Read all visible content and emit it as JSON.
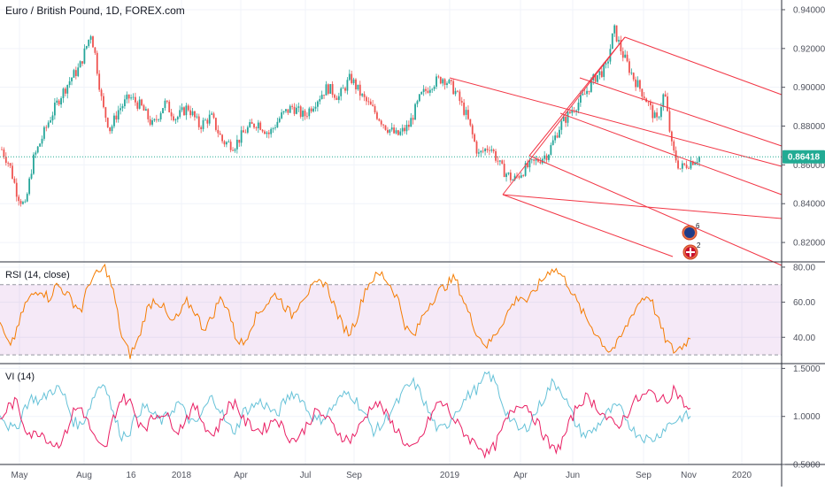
{
  "header": {
    "title": "Euro / British Pound, 1D, FOREX.com"
  },
  "colors": {
    "up": "#26a69a",
    "down": "#ef5350",
    "pitchfork": "#f23645",
    "last_price": "#22ab94",
    "rsi_line": "#f57c00",
    "rsi_band": "#9c27b0",
    "vi_plus": "#66c2d8",
    "vi_minus": "#e91e63",
    "grid": "#f0f3fa"
  },
  "chart_data": [
    {
      "type": "candlestick",
      "pane": "price",
      "title": "Euro / British Pound, 1D, FOREX.com",
      "ylim": [
        0.81,
        0.945
      ],
      "yticks": [
        "0.94000",
        "0.92000",
        "0.90000",
        "0.88000",
        "0.86000",
        "0.84000",
        "0.82000"
      ],
      "last_price": "0.86418",
      "x_axis_labels": [
        "May",
        "Aug",
        "16",
        "2018",
        "Apr",
        "Jul",
        "Sep",
        "2019",
        "Apr",
        "Jun",
        "Sep",
        "Nov",
        "2020"
      ],
      "close_path": [
        [
          0.0,
          0.868
        ],
        [
          0.01,
          0.86
        ],
        [
          0.02,
          0.845
        ],
        [
          0.03,
          0.838
        ],
        [
          0.04,
          0.862
        ],
        [
          0.05,
          0.872
        ],
        [
          0.06,
          0.882
        ],
        [
          0.075,
          0.895
        ],
        [
          0.09,
          0.905
        ],
        [
          0.1,
          0.91
        ],
        [
          0.11,
          0.922
        ],
        [
          0.115,
          0.928
        ],
        [
          0.12,
          0.918
        ],
        [
          0.13,
          0.89
        ],
        [
          0.14,
          0.878
        ],
        [
          0.15,
          0.888
        ],
        [
          0.165,
          0.895
        ],
        [
          0.18,
          0.89
        ],
        [
          0.195,
          0.88
        ],
        [
          0.21,
          0.892
        ],
        [
          0.225,
          0.884
        ],
        [
          0.24,
          0.89
        ],
        [
          0.255,
          0.88
        ],
        [
          0.27,
          0.885
        ],
        [
          0.285,
          0.872
        ],
        [
          0.3,
          0.87
        ],
        [
          0.315,
          0.878
        ],
        [
          0.33,
          0.882
        ],
        [
          0.345,
          0.876
        ],
        [
          0.36,
          0.885
        ],
        [
          0.375,
          0.89
        ],
        [
          0.39,
          0.885
        ],
        [
          0.405,
          0.893
        ],
        [
          0.42,
          0.9
        ],
        [
          0.435,
          0.895
        ],
        [
          0.45,
          0.905
        ],
        [
          0.465,
          0.895
        ],
        [
          0.48,
          0.888
        ],
        [
          0.495,
          0.88
        ],
        [
          0.51,
          0.875
        ],
        [
          0.525,
          0.88
        ],
        [
          0.54,
          0.895
        ],
        [
          0.555,
          0.902
        ],
        [
          0.57,
          0.905
        ],
        [
          0.585,
          0.898
        ],
        [
          0.6,
          0.885
        ],
        [
          0.615,
          0.865
        ],
        [
          0.63,
          0.87
        ],
        [
          0.645,
          0.858
        ],
        [
          0.66,
          0.852
        ],
        [
          0.675,
          0.858
        ],
        [
          0.69,
          0.862
        ],
        [
          0.705,
          0.866
        ],
        [
          0.72,
          0.88
        ],
        [
          0.735,
          0.888
        ],
        [
          0.75,
          0.895
        ],
        [
          0.765,
          0.905
        ],
        [
          0.78,
          0.91
        ],
        [
          0.79,
          0.93
        ],
        [
          0.8,
          0.918
        ],
        [
          0.815,
          0.905
        ],
        [
          0.83,
          0.895
        ],
        [
          0.845,
          0.882
        ],
        [
          0.855,
          0.898
        ],
        [
          0.865,
          0.868
        ],
        [
          0.875,
          0.858
        ],
        [
          0.89,
          0.862
        ],
        [
          0.9,
          0.864
        ]
      ]
    },
    {
      "type": "line",
      "pane": "rsi",
      "title": "RSI (14, close)",
      "ylim": [
        25,
        83
      ],
      "yticks": [
        "80.00",
        "60.00",
        "40.00"
      ],
      "band": [
        30,
        70
      ],
      "values": [
        48,
        35,
        42,
        58,
        64,
        68,
        62,
        70,
        66,
        60,
        55,
        72,
        76,
        80,
        65,
        40,
        30,
        38,
        55,
        62,
        58,
        48,
        52,
        60,
        55,
        45,
        50,
        62,
        58,
        40,
        36,
        48,
        55,
        60,
        65,
        58,
        52,
        62,
        66,
        70,
        72,
        60,
        48,
        42,
        52,
        68,
        74,
        76,
        70,
        62,
        45,
        40,
        52,
        60,
        66,
        70,
        74,
        62,
        50,
        40,
        35,
        42,
        50,
        58,
        64,
        60,
        68,
        74,
        80,
        76,
        70,
        60,
        52,
        45,
        38,
        32,
        36,
        45,
        55,
        62,
        64,
        50,
        38,
        32,
        35,
        40
      ]
    },
    {
      "type": "line",
      "pane": "vi",
      "title": "VI (14)",
      "ylim": [
        0.5,
        1.55
      ],
      "yticks": [
        "1.5000",
        "1.0000",
        "0.5000"
      ],
      "series": [
        {
          "values": [
            1.05,
            0.9,
            0.85,
            1.1,
            1.2,
            1.15,
            1.25,
            1.3,
            1.2,
            0.95,
            0.9,
            1.1,
            1.3,
            1.35,
            1.0,
            0.8,
            0.85,
            1.05,
            1.1,
            1.0,
            0.95,
            1.05,
            1.15,
            1.0,
            0.9,
            1.05,
            1.2,
            1.1,
            0.9,
            0.85,
            1.05,
            1.1,
            1.15,
            1.1,
            1.0,
            1.15,
            1.25,
            1.2,
            1.05,
            0.95,
            1.0,
            1.1,
            1.2,
            1.25,
            1.15,
            1.0,
            0.85,
            0.9,
            1.05,
            1.15,
            1.3,
            1.35,
            1.2,
            1.0,
            0.85,
            0.9,
            1.05,
            1.15,
            1.25,
            1.3,
            1.45,
            1.35,
            1.1,
            0.95,
            0.85,
            0.9,
            1.05,
            1.2,
            1.35,
            1.3,
            1.1,
            0.9,
            0.8,
            0.85,
            0.95,
            1.05,
            1.1,
            1.0,
            0.85,
            0.8,
            0.75,
            0.8,
            0.9,
            0.95,
            1.0,
            1.0
          ]
        },
        {
          "values": [
            0.95,
            1.1,
            1.15,
            0.9,
            0.8,
            0.85,
            0.75,
            0.7,
            0.8,
            1.05,
            1.1,
            0.9,
            0.7,
            0.65,
            1.0,
            1.2,
            1.15,
            0.95,
            0.9,
            1.0,
            1.05,
            0.95,
            0.85,
            1.0,
            1.1,
            0.95,
            0.8,
            0.9,
            1.1,
            1.15,
            0.95,
            0.9,
            0.85,
            0.9,
            1.0,
            0.85,
            0.75,
            0.8,
            0.95,
            1.05,
            1.0,
            0.9,
            0.8,
            0.75,
            0.85,
            1.0,
            1.15,
            1.1,
            0.95,
            0.85,
            0.7,
            0.65,
            0.8,
            1.0,
            1.15,
            1.1,
            0.95,
            0.85,
            0.75,
            0.7,
            0.6,
            0.7,
            0.9,
            1.05,
            1.15,
            1.1,
            0.95,
            0.8,
            0.65,
            0.7,
            0.9,
            1.1,
            1.2,
            1.15,
            1.05,
            0.95,
            0.9,
            1.0,
            1.15,
            1.2,
            1.25,
            1.2,
            1.15,
            1.3,
            1.15,
            1.05
          ]
        }
      ]
    }
  ]
}
